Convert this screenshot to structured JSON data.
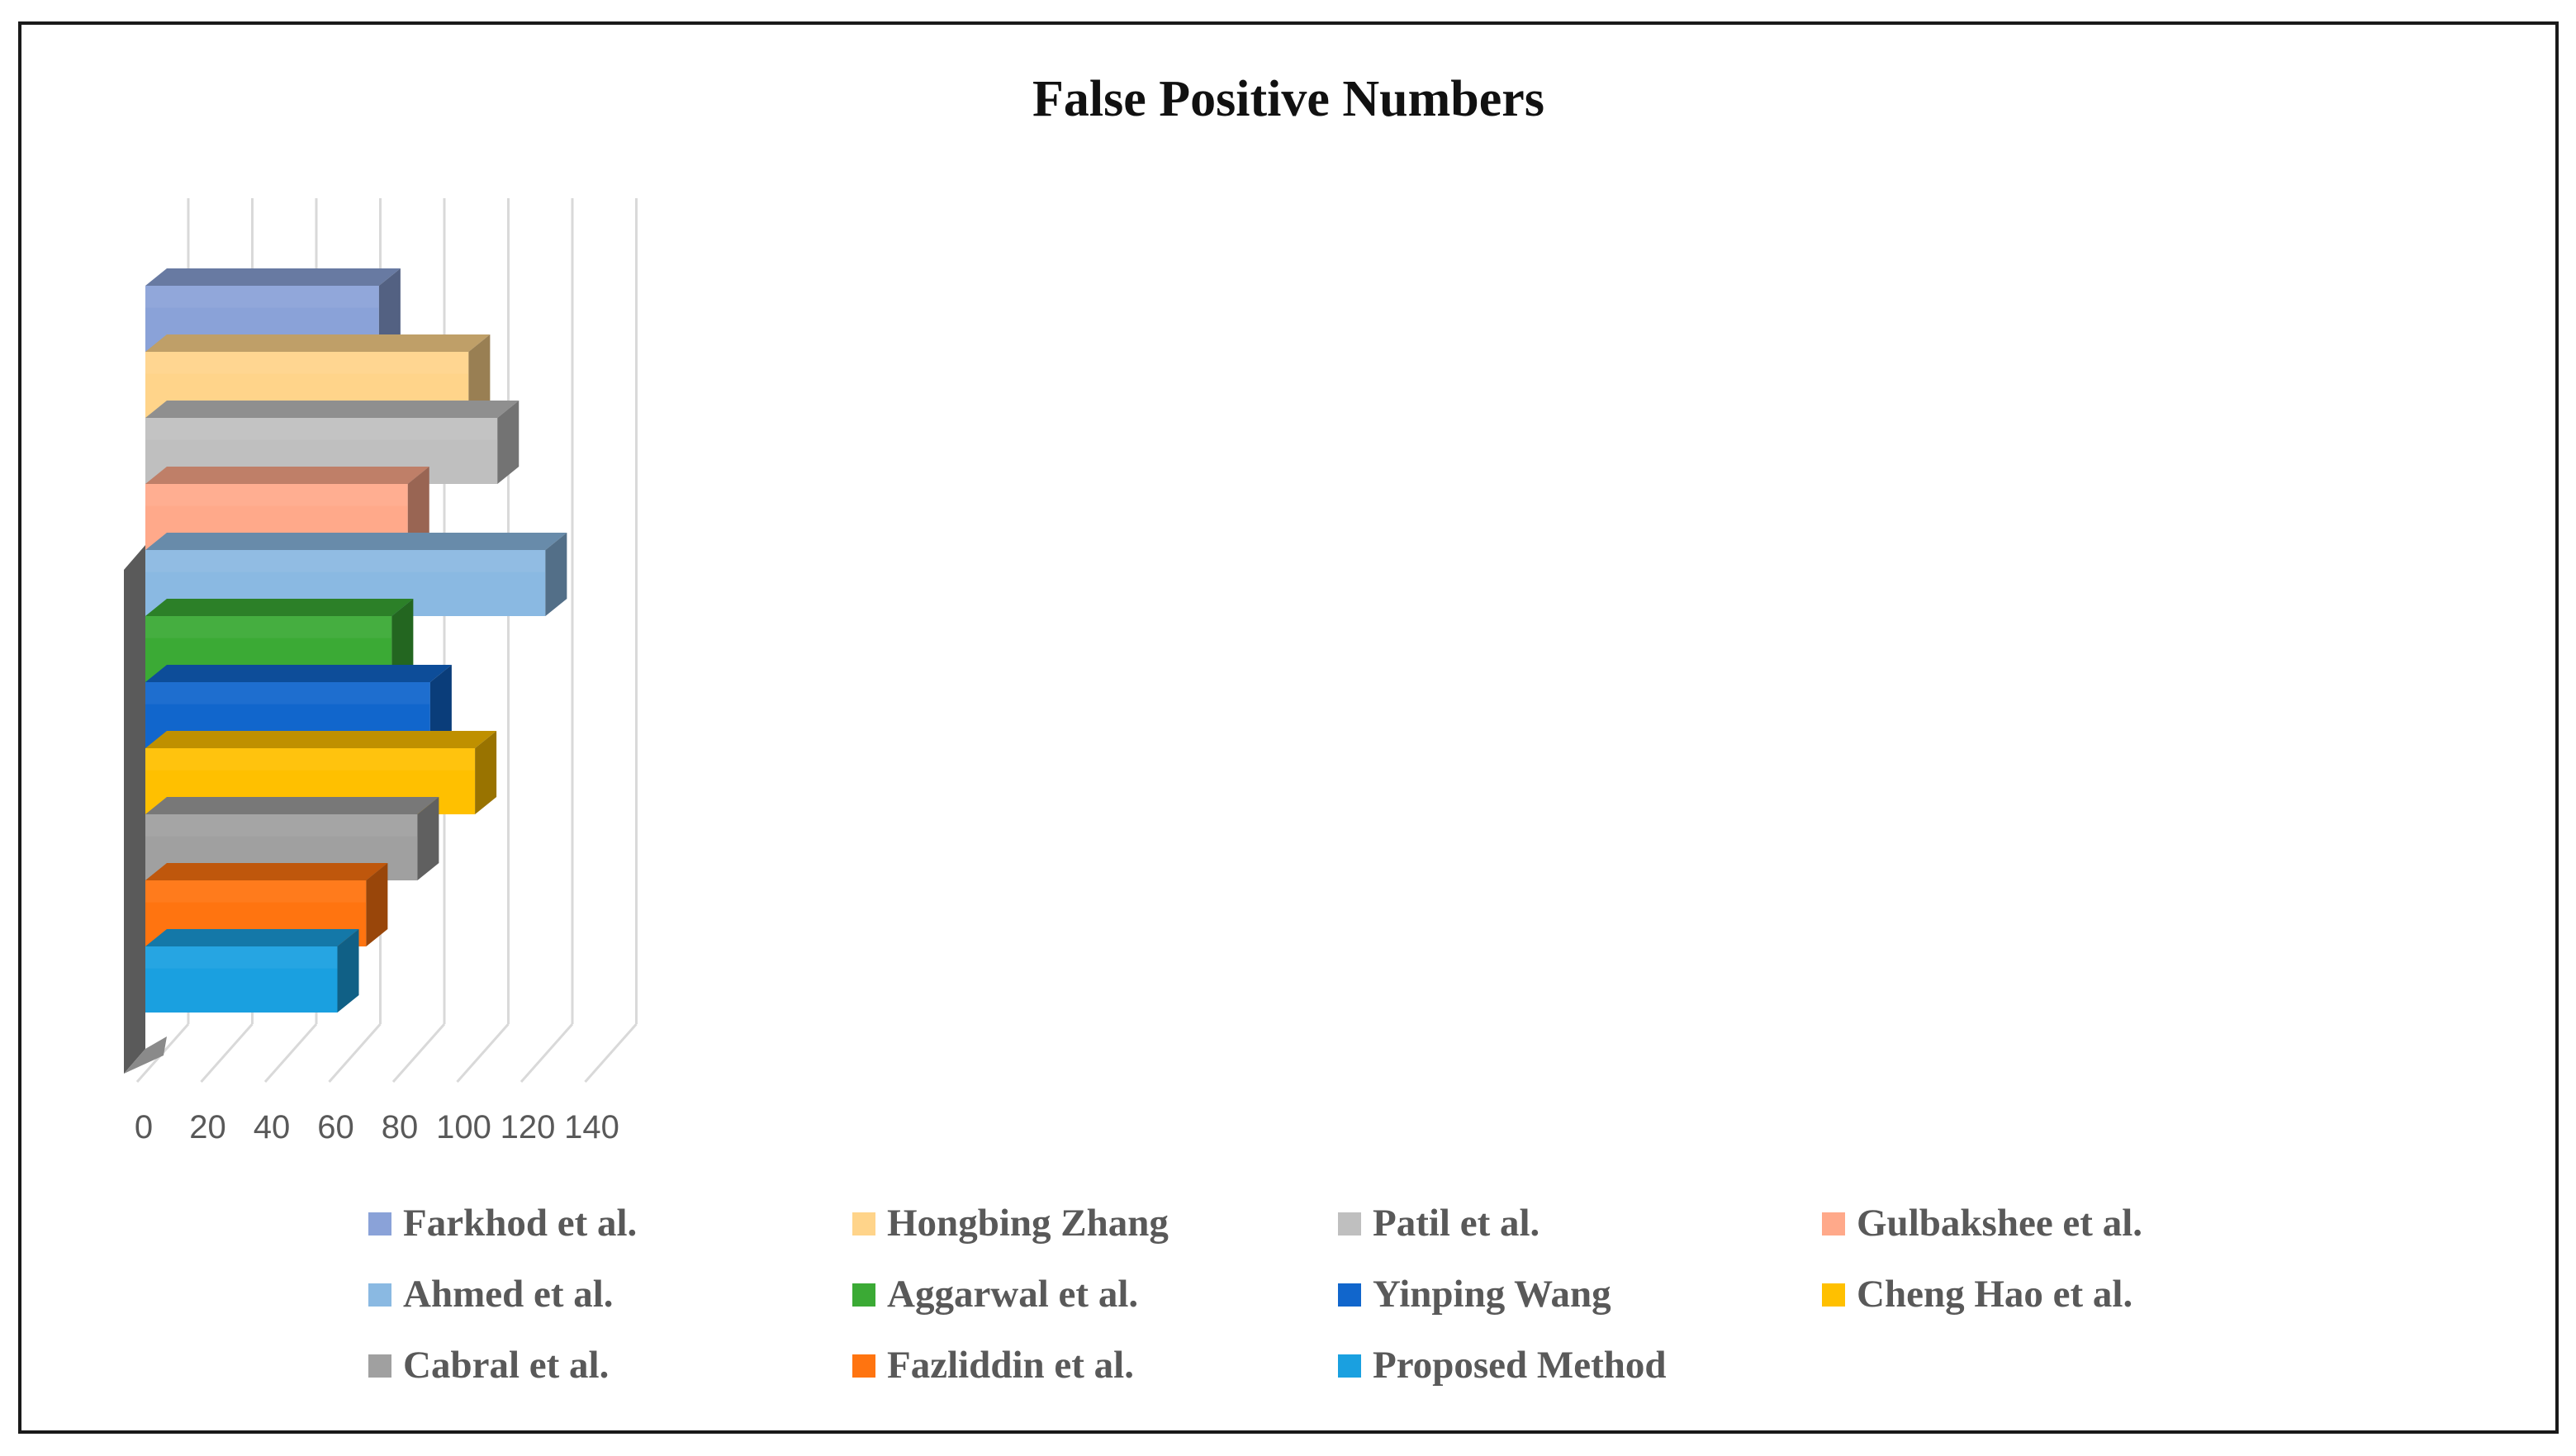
{
  "chart_data": {
    "type": "bar",
    "orientation": "horizontal",
    "style": "3d-clustered",
    "title": "False Positive Numbers",
    "xlabel": "",
    "ylabel": "",
    "xlim": [
      0,
      140
    ],
    "x_ticks": [
      0,
      20,
      40,
      60,
      80,
      100,
      120,
      140
    ],
    "grid": true,
    "legend_position": "bottom",
    "series": [
      {
        "name": "Farkhod et al.",
        "value": 73,
        "color": "#8AA2D8"
      },
      {
        "name": "Hongbing Zhang",
        "value": 101,
        "color": "#FFD48A"
      },
      {
        "name": "Patil et al.",
        "value": 110,
        "color": "#BFBFBF"
      },
      {
        "name": "Gulbakshee et al.",
        "value": 82,
        "color": "#FFA98A"
      },
      {
        "name": "Ahmed et al.",
        "value": 125,
        "color": "#8AB9E2"
      },
      {
        "name": "Aggarwal et al.",
        "value": 77,
        "color": "#3BAA35"
      },
      {
        "name": "Yinping Wang",
        "value": 89,
        "color": "#1166CC"
      },
      {
        "name": "Cheng Hao et al.",
        "value": 103,
        "color": "#FFC000"
      },
      {
        "name": "Cabral et al.",
        "value": 85,
        "color": "#A0A0A0"
      },
      {
        "name": "Fazliddin et al.",
        "value": 69,
        "color": "#FF7410"
      },
      {
        "name": "Proposed Method",
        "value": 60,
        "color": "#1AA0E0"
      }
    ]
  }
}
